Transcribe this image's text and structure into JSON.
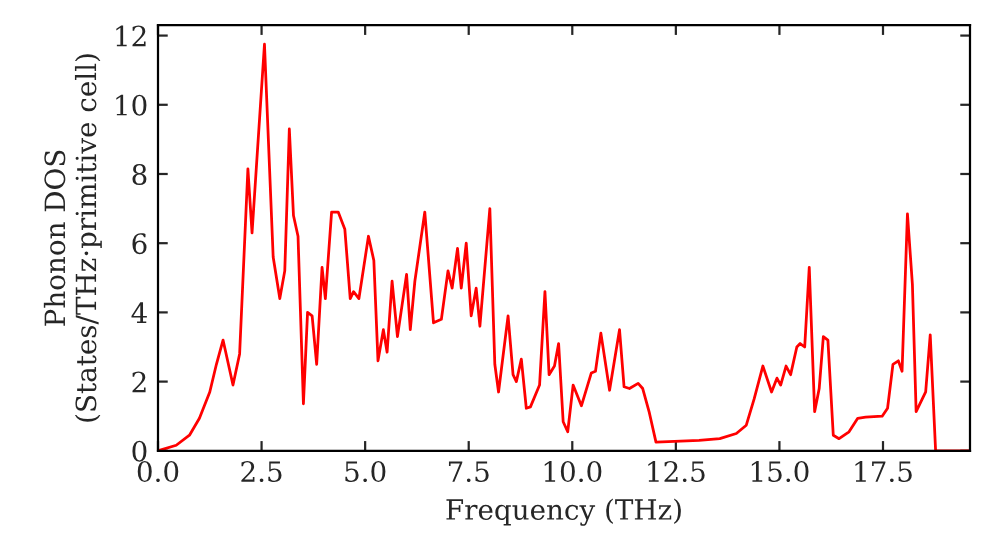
{
  "chart_data": {
    "type": "line",
    "xlabel": "Frequency (THz)",
    "ylabel": "Phonon DOS\n(States/THz·primitive cell)",
    "series": [
      {
        "color": "#ff0000",
        "x": [
          0,
          0.44,
          0.76,
          1.0,
          1.25,
          1.41,
          1.57,
          1.81,
          1.97,
          2.17,
          2.27,
          2.57,
          2.78,
          2.94,
          3.06,
          3.17,
          3.27,
          3.38,
          3.51,
          3.61,
          3.72,
          3.83,
          3.96,
          4.04,
          4.19,
          4.35,
          4.51,
          4.64,
          4.72,
          4.85,
          5.08,
          5.21,
          5.31,
          5.44,
          5.53,
          5.65,
          5.78,
          6.0,
          6.09,
          6.2,
          6.44,
          6.65,
          6.84,
          7.0,
          7.1,
          7.23,
          7.32,
          7.44,
          7.56,
          7.68,
          7.77,
          8.01,
          8.13,
          8.22,
          8.45,
          8.57,
          8.65,
          8.77,
          8.89,
          8.99,
          9.21,
          9.34,
          9.44,
          9.57,
          9.67,
          9.78,
          9.89,
          10.02,
          10.22,
          10.46,
          10.56,
          10.69,
          10.9,
          11.14,
          11.25,
          11.38,
          11.59,
          11.7,
          11.86,
          12.02,
          13.06,
          13.56,
          13.96,
          14.2,
          14.39,
          14.6,
          14.81,
          14.94,
          15.03,
          15.16,
          15.27,
          15.42,
          15.5,
          15.61,
          15.72,
          15.85,
          15.96,
          16.06,
          16.17,
          16.3,
          16.44,
          16.68,
          16.89,
          17.08,
          17.48,
          17.61,
          17.74,
          17.87,
          17.96,
          18.09,
          18.21,
          18.3,
          18.53,
          18.64,
          18.77,
          19.57
        ],
        "values": [
          0,
          0.16,
          0.45,
          0.94,
          1.7,
          2.5,
          3.2,
          1.9,
          2.8,
          8.15,
          6.3,
          11.75,
          5.6,
          4.4,
          5.2,
          9.3,
          6.8,
          6.2,
          1.36,
          4.0,
          3.9,
          2.5,
          5.3,
          4.4,
          6.9,
          6.9,
          6.4,
          4.4,
          4.6,
          4.4,
          6.2,
          5.5,
          2.6,
          3.5,
          2.85,
          4.9,
          3.3,
          5.1,
          3.5,
          4.9,
          6.9,
          3.7,
          3.8,
          5.2,
          4.7,
          5.85,
          4.7,
          6.0,
          3.9,
          4.7,
          3.6,
          7.0,
          2.5,
          1.7,
          3.9,
          2.2,
          2.0,
          2.65,
          1.23,
          1.27,
          1.9,
          4.6,
          2.2,
          2.45,
          3.1,
          0.84,
          0.55,
          1.9,
          1.3,
          2.25,
          2.3,
          3.4,
          1.75,
          3.5,
          1.85,
          1.8,
          1.95,
          1.8,
          1.1,
          0.25,
          0.3,
          0.35,
          0.5,
          0.74,
          1.5,
          2.45,
          1.7,
          2.1,
          1.9,
          2.45,
          2.2,
          3.0,
          3.1,
          3.0,
          5.3,
          1.13,
          1.8,
          3.3,
          3.2,
          0.45,
          0.35,
          0.55,
          0.94,
          0.97,
          1.0,
          1.23,
          2.5,
          2.6,
          2.3,
          6.85,
          4.8,
          1.13,
          1.7,
          3.35,
          0,
          0
        ]
      }
    ],
    "xlim": [
      0,
      19.6
    ],
    "ylim": [
      0,
      12.3
    ],
    "xticks": [
      {
        "value": 0,
        "label": "0.0"
      },
      2.5,
      {
        "value": 5,
        "label": "5.0"
      },
      7.5,
      {
        "value": 10,
        "label": "10.0"
      },
      12.5,
      {
        "value": 15,
        "label": "15.0"
      },
      17.5
    ],
    "yticks": [
      0,
      2,
      4,
      6,
      8,
      10,
      12
    ],
    "grid": false,
    "marker": "none",
    "line_style": "solid"
  }
}
